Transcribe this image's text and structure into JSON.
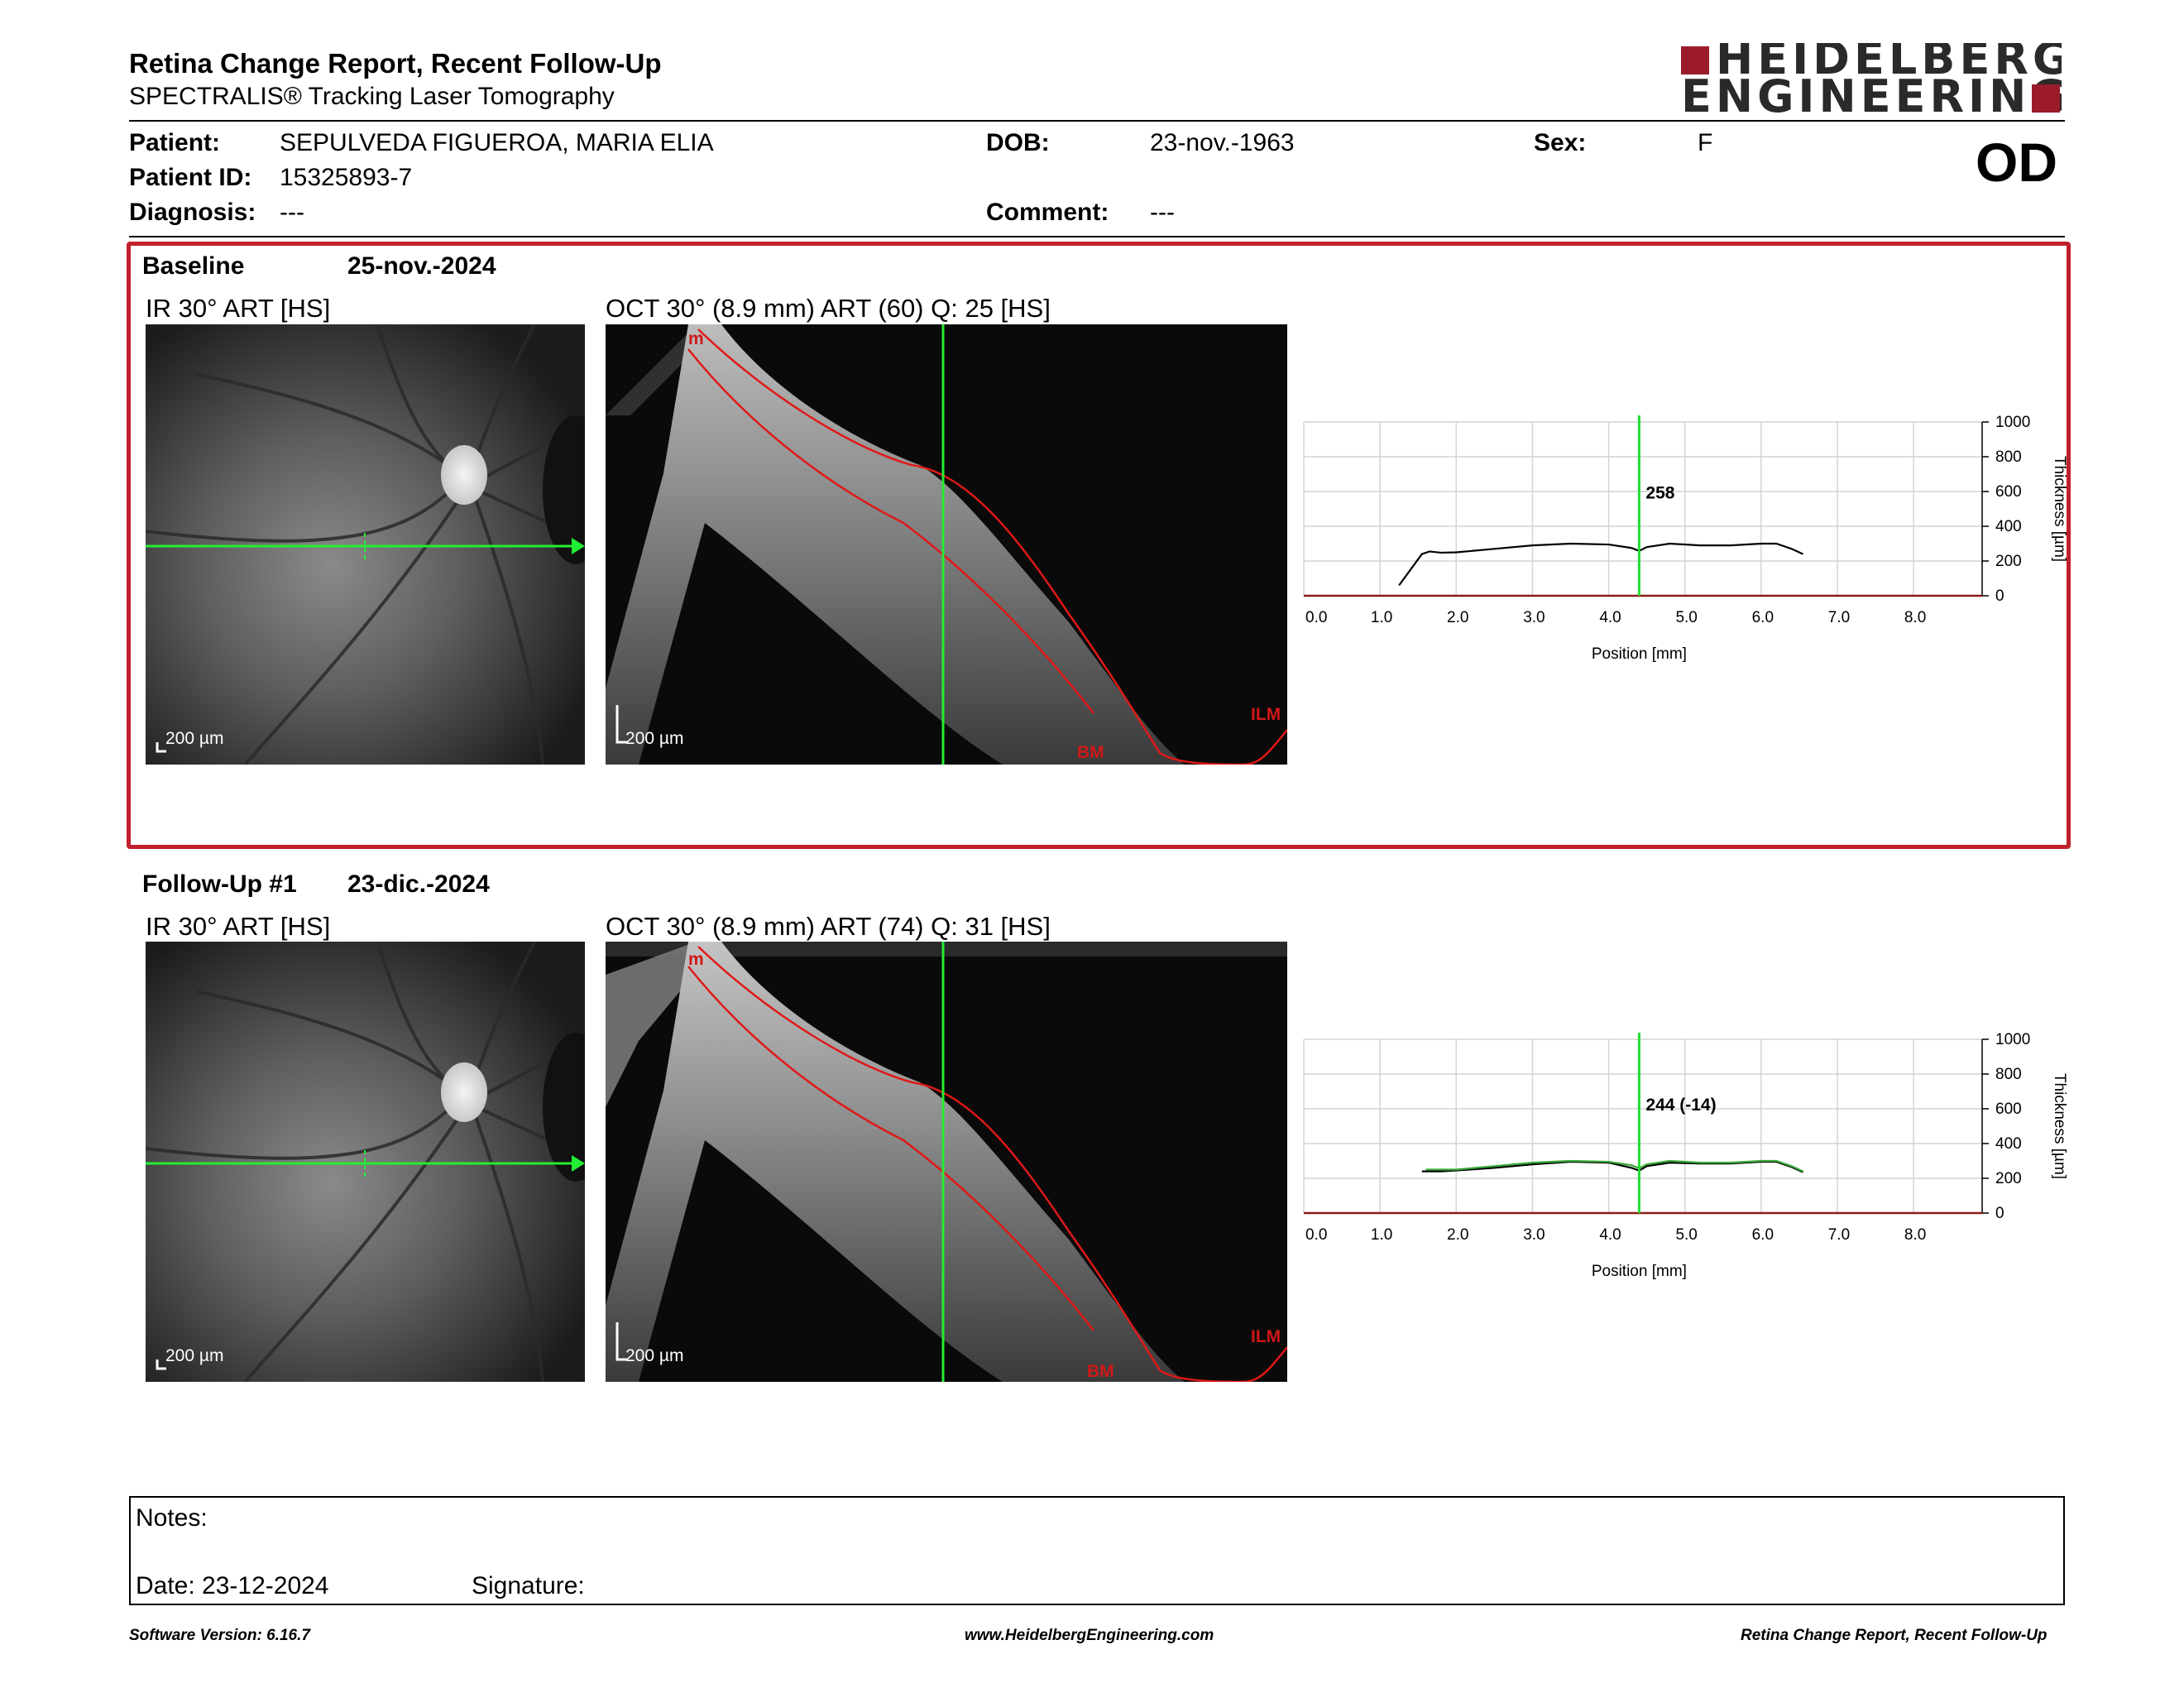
{
  "header": {
    "title": "Retina Change Report, Recent Follow-Up",
    "subtitle": "SPECTRALIS® Tracking Laser Tomography",
    "logo_line1": "HEIDELBERG",
    "logo_line2": "ENGINEERING",
    "eye": "OD"
  },
  "patient": {
    "patient_label": "Patient:",
    "patient_name": "SEPULVEDA FIGUEROA, MARIA ELIA",
    "id_label": "Patient ID:",
    "id_value": "15325893-7",
    "diagnosis_label": "Diagnosis:",
    "diagnosis_value": "---",
    "dob_label": "DOB:",
    "dob_value": "23-nov.-1963",
    "comment_label": "Comment:",
    "comment_value": "---",
    "sex_label": "Sex:",
    "sex_value": "F"
  },
  "exams": [
    {
      "label": "Baseline",
      "date": "25-nov.-2024",
      "ir_label": "IR 30° ART [HS]",
      "oct_label": "OCT 30° (8.9 mm) ART (60) Q: 25 [HS]",
      "scale": "200 µm",
      "layer_labels": [
        "m",
        "ILM",
        "BM"
      ],
      "thickness_value": "258"
    },
    {
      "label": "Follow-Up #1",
      "date": "23-dic.-2024",
      "ir_label": "IR 30° ART [HS]",
      "oct_label": "OCT 30° (8.9 mm) ART (74) Q: 31 [HS]",
      "scale": "200 µm",
      "layer_labels": [
        "m",
        "ILM",
        "BM"
      ],
      "thickness_value": "244 (-14)"
    }
  ],
  "chart_data": [
    {
      "type": "line",
      "xlabel": "Position [mm]",
      "ylabel": "Thickness [µm]",
      "xlim": [
        0,
        8.9
      ],
      "ylim": [
        0,
        1000
      ],
      "x_ticks": [
        "0.0",
        "1.0",
        "2.0",
        "3.0",
        "4.0",
        "5.0",
        "6.0",
        "7.0",
        "8.0"
      ],
      "y_ticks": [
        "0",
        "200",
        "400",
        "600",
        "800",
        "1000"
      ],
      "marker_x": 4.4,
      "marker_label": "258",
      "grid": true,
      "series": [
        {
          "color": "#000000",
          "x": [
            1.25,
            1.4,
            1.55,
            1.65,
            1.8,
            2.0,
            2.5,
            3.0,
            3.5,
            4.0,
            4.3,
            4.4,
            4.5,
            4.8,
            5.2,
            5.6,
            6.0,
            6.2,
            6.4,
            6.55
          ],
          "y": [
            60,
            150,
            240,
            255,
            248,
            250,
            270,
            290,
            300,
            295,
            275,
            258,
            280,
            300,
            290,
            290,
            300,
            300,
            270,
            240
          ]
        }
      ]
    },
    {
      "type": "line",
      "xlabel": "Position [mm]",
      "ylabel": "Thickness [µm]",
      "xlim": [
        0,
        8.9
      ],
      "ylim": [
        0,
        1000
      ],
      "x_ticks": [
        "0.0",
        "1.0",
        "2.0",
        "3.0",
        "4.0",
        "5.0",
        "6.0",
        "7.0",
        "8.0"
      ],
      "y_ticks": [
        "0",
        "200",
        "400",
        "600",
        "800",
        "1000"
      ],
      "marker_x": 4.4,
      "marker_label": "244 (-14)",
      "grid": true,
      "series": [
        {
          "color": "#000000",
          "x": [
            1.55,
            1.8,
            2.0,
            2.5,
            3.0,
            3.5,
            4.0,
            4.3,
            4.4,
            4.5,
            4.8,
            5.2,
            5.6,
            6.0,
            6.2,
            6.4,
            6.55
          ],
          "y": [
            240,
            240,
            245,
            260,
            280,
            295,
            290,
            260,
            244,
            270,
            290,
            285,
            285,
            295,
            295,
            265,
            235
          ]
        },
        {
          "color": "#38a838",
          "x": [
            1.6,
            2.0,
            2.5,
            3.0,
            3.5,
            4.0,
            4.3,
            4.4,
            4.5,
            4.8,
            5.2,
            5.6,
            6.0,
            6.2,
            6.4,
            6.55
          ],
          "y": [
            250,
            250,
            270,
            290,
            300,
            295,
            275,
            258,
            280,
            300,
            290,
            290,
            300,
            300,
            270,
            240
          ]
        }
      ]
    }
  ],
  "notes": {
    "notes_label": "Notes:",
    "date_label": "Date: 23-12-2024",
    "signature_label": "Signature:"
  },
  "footer": {
    "software": "Software Version: 6.16.7",
    "website": "www.HeidelbergEngineering.com",
    "report": "Retina Change Report, Recent Follow-Up"
  }
}
